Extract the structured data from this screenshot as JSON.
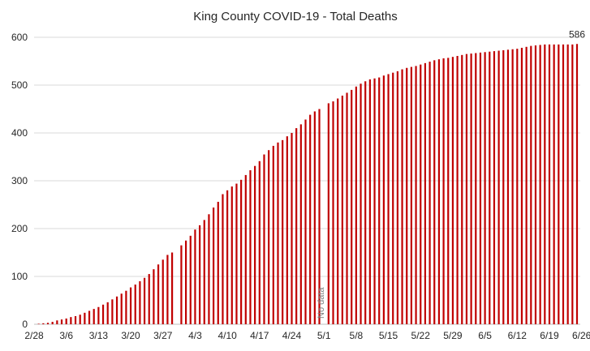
{
  "chart_data": {
    "type": "bar",
    "title": "King County COVID-19 - Total Deaths",
    "xlabel": "",
    "ylabel": "",
    "ylim": [
      0,
      600
    ],
    "yticks": [
      0,
      100,
      200,
      300,
      400,
      500,
      600
    ],
    "grid": "horizontal",
    "legend": "none",
    "bar_color": "#c00000",
    "grid_color": "#d9d9d9",
    "start_date": "2/28",
    "end_date": "6/26",
    "xtick_labels": [
      "2/28",
      "3/6",
      "3/13",
      "3/20",
      "3/27",
      "4/3",
      "4/10",
      "4/17",
      "4/24",
      "5/1",
      "5/8",
      "5/15",
      "5/22",
      "5/29",
      "6/5",
      "6/12",
      "6/19",
      "6/26"
    ],
    "values": [
      0,
      1,
      2,
      3,
      5,
      8,
      10,
      12,
      15,
      17,
      20,
      24,
      28,
      32,
      36,
      41,
      46,
      52,
      58,
      64,
      70,
      77,
      83,
      90,
      97,
      105,
      115,
      125,
      135,
      145,
      150,
      null,
      165,
      175,
      185,
      198,
      207,
      218,
      230,
      244,
      256,
      272,
      280,
      288,
      294,
      302,
      312,
      322,
      331,
      341,
      355,
      364,
      373,
      380,
      385,
      393,
      400,
      410,
      418,
      428,
      438,
      445,
      450,
      null,
      462,
      466,
      472,
      478,
      484,
      490,
      497,
      503,
      508,
      512,
      514,
      516,
      520,
      523,
      526,
      529,
      533,
      536,
      538,
      540,
      543,
      546,
      549,
      552,
      554,
      556,
      557,
      559,
      561,
      563,
      565,
      566,
      567,
      568,
      569,
      570,
      571,
      572,
      573,
      574,
      575,
      576,
      578,
      580,
      582,
      583,
      584,
      585,
      585,
      585,
      585,
      585,
      585,
      585,
      586
    ],
    "annotations": [
      {
        "text": "586",
        "at": "6/26"
      },
      {
        "text": "No data",
        "at": "5/2"
      }
    ]
  }
}
